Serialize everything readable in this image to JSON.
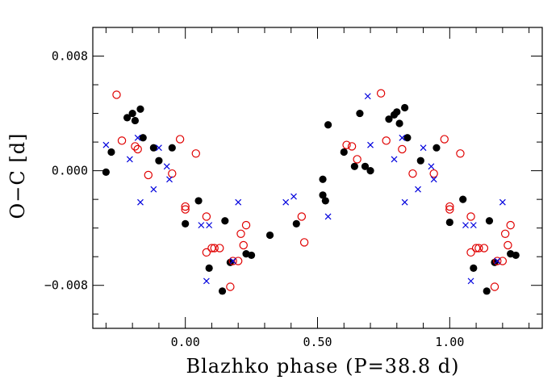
{
  "chart_data": {
    "type": "scatter",
    "title": "",
    "xlabel": "Blazhko phase (P=38.8 d)",
    "ylabel": "O−C [d]",
    "xlim": [
      -0.35,
      1.35
    ],
    "ylim": [
      -0.011,
      0.01
    ],
    "x_ticks": [
      0.0,
      0.5,
      1.0
    ],
    "x_tick_labels": [
      "0.00",
      "0.50",
      "1.00"
    ],
    "y_ticks": [
      0.008,
      0.0,
      -0.008
    ],
    "y_tick_labels": [
      "0.008",
      "0.000",
      "−0.008"
    ],
    "colors": {
      "filled": "#000000",
      "open": "#e00000",
      "cross": "#0000dd"
    },
    "series": [
      {
        "name": "filled circles",
        "marker": "filled-circle",
        "points": [
          [
            -0.3,
            -0.0001
          ],
          [
            -0.28,
            0.0013
          ],
          [
            -0.22,
            0.0037
          ],
          [
            -0.2,
            0.004
          ],
          [
            -0.19,
            0.0035
          ],
          [
            -0.17,
            0.0043
          ],
          [
            -0.16,
            0.0023
          ],
          [
            -0.12,
            0.0016
          ],
          [
            -0.1,
            0.0007
          ],
          [
            -0.05,
            0.0016
          ],
          [
            0.0,
            -0.0037
          ],
          [
            0.05,
            -0.0021
          ],
          [
            0.09,
            -0.0068
          ],
          [
            0.14,
            -0.0084
          ],
          [
            0.15,
            -0.0035
          ],
          [
            0.17,
            -0.0064
          ],
          [
            0.23,
            -0.0058
          ],
          [
            0.25,
            -0.0059
          ],
          [
            0.32,
            -0.0045
          ],
          [
            0.42,
            -0.0037
          ],
          [
            0.52,
            -0.0017
          ],
          [
            0.52,
            -0.0006
          ],
          [
            0.53,
            -0.0021
          ],
          [
            0.54,
            0.0032
          ],
          [
            0.6,
            0.0013
          ],
          [
            0.64,
            0.0003
          ],
          [
            0.66,
            0.004
          ],
          [
            0.68,
            0.0003
          ],
          [
            0.7,
            0.0
          ],
          [
            0.77,
            0.0036
          ],
          [
            0.79,
            0.0039
          ],
          [
            0.8,
            0.0041
          ],
          [
            0.81,
            0.0033
          ],
          [
            0.83,
            0.0044
          ],
          [
            0.84,
            0.0023
          ],
          [
            0.89,
            0.0007
          ],
          [
            0.95,
            0.0016
          ],
          [
            1.0,
            -0.0036
          ],
          [
            1.05,
            -0.002
          ],
          [
            1.09,
            -0.0068
          ],
          [
            1.14,
            -0.0084
          ],
          [
            1.15,
            -0.0035
          ],
          [
            1.17,
            -0.0064
          ],
          [
            1.23,
            -0.0058
          ],
          [
            1.25,
            -0.0059
          ]
        ]
      },
      {
        "name": "open circles",
        "marker": "open-circle",
        "points": [
          [
            -0.26,
            0.0053
          ],
          [
            -0.24,
            0.0021
          ],
          [
            -0.19,
            0.0017
          ],
          [
            -0.18,
            0.0015
          ],
          [
            -0.14,
            -0.0003
          ],
          [
            -0.05,
            -0.0002
          ],
          [
            -0.02,
            0.0022
          ],
          [
            0.0,
            -0.0025
          ],
          [
            0.0,
            -0.0027
          ],
          [
            0.04,
            0.0012
          ],
          [
            0.08,
            -0.0032
          ],
          [
            0.08,
            -0.0057
          ],
          [
            0.1,
            -0.0054
          ],
          [
            0.11,
            -0.0054
          ],
          [
            0.13,
            -0.0054
          ],
          [
            0.17,
            -0.0081
          ],
          [
            0.18,
            -0.0063
          ],
          [
            0.2,
            -0.0063
          ],
          [
            0.21,
            -0.0044
          ],
          [
            0.22,
            -0.0052
          ],
          [
            0.23,
            -0.0038
          ],
          [
            0.44,
            -0.0032
          ],
          [
            0.45,
            -0.005
          ],
          [
            0.61,
            0.0018
          ],
          [
            0.63,
            0.0017
          ],
          [
            0.65,
            0.0008
          ],
          [
            0.74,
            0.0054
          ],
          [
            0.76,
            0.0021
          ],
          [
            0.82,
            0.0015
          ],
          [
            0.86,
            -0.0002
          ],
          [
            0.94,
            -0.0002
          ],
          [
            0.98,
            0.0022
          ],
          [
            1.0,
            -0.0025
          ],
          [
            1.0,
            -0.0027
          ],
          [
            1.04,
            0.0012
          ],
          [
            1.08,
            -0.0032
          ],
          [
            1.08,
            -0.0057
          ],
          [
            1.1,
            -0.0054
          ],
          [
            1.11,
            -0.0054
          ],
          [
            1.13,
            -0.0054
          ],
          [
            1.17,
            -0.0081
          ],
          [
            1.18,
            -0.0063
          ],
          [
            1.2,
            -0.0063
          ],
          [
            1.21,
            -0.0044
          ],
          [
            1.22,
            -0.0052
          ],
          [
            1.23,
            -0.0038
          ]
        ]
      },
      {
        "name": "crosses",
        "marker": "cross",
        "points": [
          [
            -0.3,
            0.0018
          ],
          [
            -0.21,
            0.0008
          ],
          [
            -0.18,
            0.0023
          ],
          [
            -0.17,
            -0.0022
          ],
          [
            -0.12,
            -0.0013
          ],
          [
            -0.1,
            0.0016
          ],
          [
            -0.07,
            0.0003
          ],
          [
            -0.06,
            -0.0006
          ],
          [
            0.06,
            -0.0038
          ],
          [
            0.08,
            -0.0077
          ],
          [
            0.09,
            -0.0038
          ],
          [
            0.18,
            -0.0063
          ],
          [
            0.2,
            -0.0022
          ],
          [
            0.38,
            -0.0022
          ],
          [
            0.41,
            -0.0018
          ],
          [
            0.54,
            -0.0032
          ],
          [
            0.69,
            0.0052
          ],
          [
            0.7,
            0.0018
          ],
          [
            0.79,
            0.0008
          ],
          [
            0.82,
            0.0023
          ],
          [
            0.83,
            -0.0022
          ],
          [
            0.88,
            -0.0013
          ],
          [
            0.9,
            0.0016
          ],
          [
            0.93,
            0.0003
          ],
          [
            0.94,
            -0.0006
          ],
          [
            1.06,
            -0.0038
          ],
          [
            1.08,
            -0.0077
          ],
          [
            1.09,
            -0.0038
          ],
          [
            1.18,
            -0.0063
          ],
          [
            1.2,
            -0.0022
          ]
        ]
      }
    ]
  }
}
